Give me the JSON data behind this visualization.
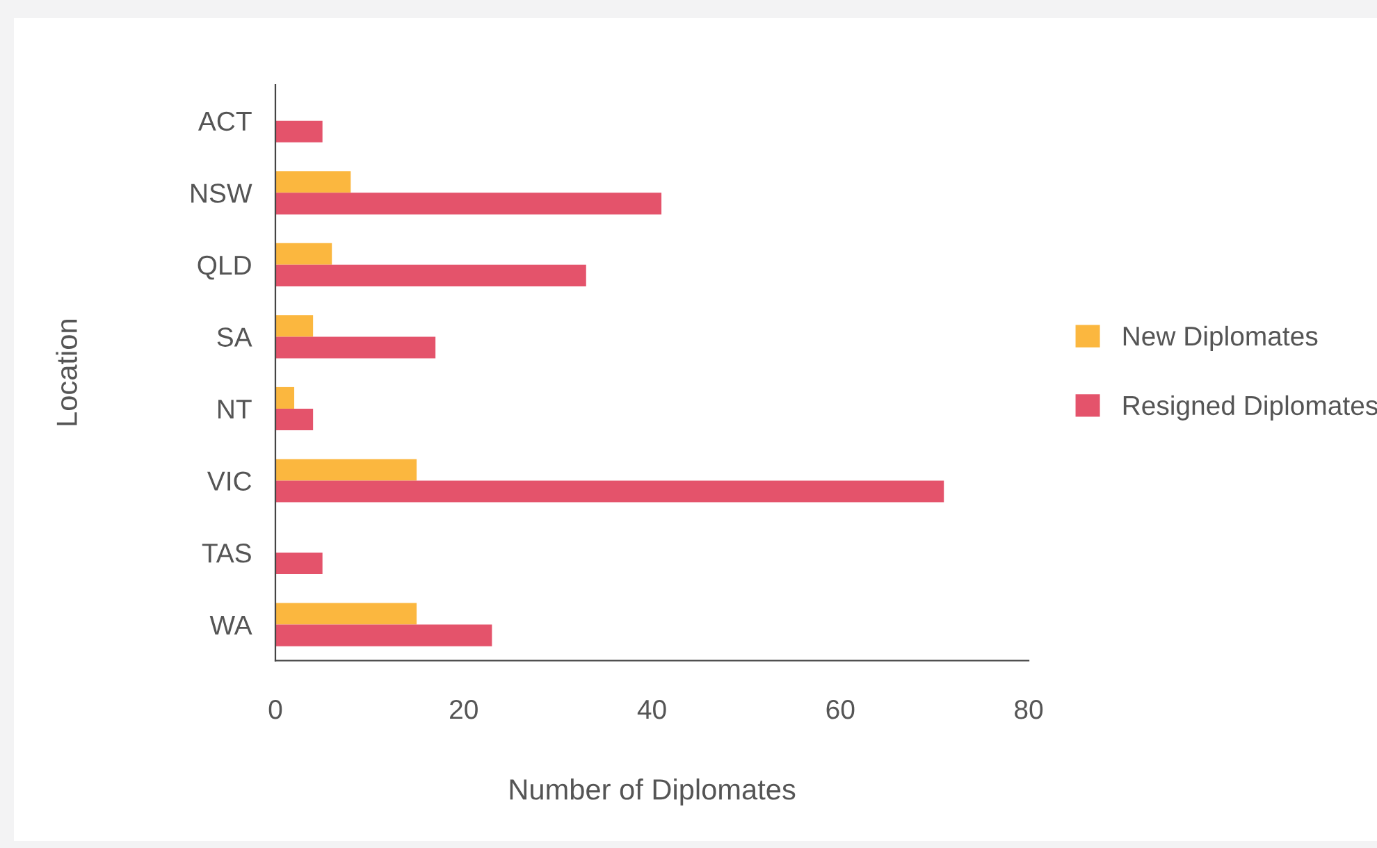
{
  "chart_data": {
    "type": "bar",
    "orientation": "horizontal",
    "categories": [
      "ACT",
      "NSW",
      "QLD",
      "SA",
      "NT",
      "VIC",
      "TAS",
      "WA"
    ],
    "series": [
      {
        "name": "New Diplomates",
        "color": "#fbb73f",
        "values": [
          0,
          8,
          6,
          4,
          2,
          15,
          0,
          15
        ]
      },
      {
        "name": "Resigned Diplomates",
        "color": "#e4536b",
        "values": [
          5,
          41,
          33,
          17,
          4,
          71,
          5,
          23
        ]
      }
    ],
    "xlabel": "Number of Diplomates",
    "ylabel": "Location",
    "xlim": [
      0,
      80
    ],
    "xticks": [
      0,
      20,
      40,
      60,
      80
    ],
    "grid": false,
    "legend": "right"
  }
}
